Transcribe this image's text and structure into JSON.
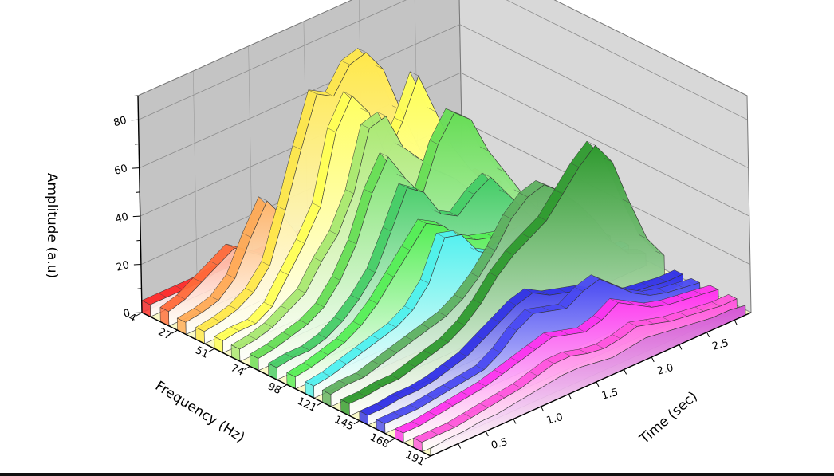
{
  "chart_data": {
    "type": "area",
    "title": "",
    "xlabel": "Frequency (Hz)",
    "ylabel": "Time (sec)",
    "zlabel": "Amplitude (a.u)",
    "x_ticks": [
      "4",
      "27",
      "51",
      "74",
      "98",
      "121",
      "145",
      "168",
      "191"
    ],
    "y_ticks": [
      "0.5",
      "1.0",
      "1.5",
      "2.0",
      "2.5"
    ],
    "z_ticks": [
      "0",
      "20",
      "40",
      "60",
      "80"
    ],
    "zlim": [
      0,
      90
    ],
    "time_range": [
      0,
      2.9
    ],
    "time_points": [
      0.0,
      0.15,
      0.3,
      0.45,
      0.6,
      0.75,
      0.9,
      1.05,
      1.2,
      1.35,
      1.5,
      1.65,
      1.8,
      1.95,
      2.1,
      2.25,
      2.4,
      2.55,
      2.7,
      2.85
    ],
    "grid": true,
    "series": [
      {
        "name": "",
        "frequency": 4,
        "color": "#ff2a2a",
        "values": [
          5,
          5,
          5,
          5,
          6,
          6,
          6,
          5,
          5,
          5,
          5,
          5,
          5,
          5,
          5,
          5,
          5,
          5,
          5,
          5
        ]
      },
      {
        "name": "",
        "frequency": 16,
        "color": "#ff6a3a",
        "values": [
          6,
          8,
          12,
          16,
          20,
          15,
          10,
          8,
          6,
          5,
          5,
          5,
          5,
          5,
          5,
          5,
          5,
          5,
          5,
          5
        ]
      },
      {
        "name": "",
        "frequency": 27,
        "color": "#ffaa55",
        "values": [
          5,
          6,
          8,
          14,
          28,
          40,
          30,
          18,
          10,
          6,
          5,
          5,
          5,
          5,
          5,
          5,
          5,
          5,
          5,
          5
        ]
      },
      {
        "name": "",
        "frequency": 39,
        "color": "#ffe84a",
        "values": [
          5,
          6,
          8,
          12,
          20,
          40,
          62,
          82,
          78,
          88,
          90,
          80,
          60,
          42,
          26,
          14,
          8,
          6,
          5,
          5
        ]
      },
      {
        "name": "",
        "frequency": 51,
        "color": "#ffff55",
        "values": [
          5,
          6,
          6,
          10,
          20,
          30,
          42,
          70,
          82,
          72,
          50,
          62,
          78,
          60,
          42,
          30,
          20,
          12,
          8,
          5
        ]
      },
      {
        "name": "",
        "frequency": 62,
        "color": "#a8e870",
        "values": [
          5,
          6,
          8,
          12,
          16,
          26,
          34,
          48,
          72,
          74,
          58,
          50,
          42,
          36,
          28,
          20,
          12,
          8,
          6,
          5
        ]
      },
      {
        "name": "",
        "frequency": 74,
        "color": "#66dd55",
        "values": [
          5,
          6,
          8,
          10,
          14,
          22,
          34,
          52,
          64,
          52,
          42,
          60,
          70,
          64,
          48,
          36,
          24,
          14,
          8,
          5
        ]
      },
      {
        "name": "",
        "frequency": 86,
        "color": "#44cc66",
        "values": [
          5,
          6,
          6,
          8,
          12,
          18,
          26,
          40,
          55,
          50,
          38,
          34,
          40,
          44,
          34,
          24,
          14,
          8,
          6,
          5
        ]
      },
      {
        "name": "",
        "frequency": 98,
        "color": "#55ee55",
        "values": [
          5,
          6,
          8,
          10,
          14,
          20,
          28,
          36,
          44,
          40,
          32,
          28,
          26,
          24,
          22,
          18,
          12,
          8,
          6,
          5
        ]
      },
      {
        "name": "",
        "frequency": 110,
        "color": "#4ff0f0",
        "values": [
          5,
          6,
          8,
          10,
          12,
          14,
          18,
          26,
          42,
          40,
          30,
          26,
          28,
          30,
          22,
          14,
          8,
          6,
          5,
          5
        ]
      },
      {
        "name": "",
        "frequency": 121,
        "color": "#5fb060",
        "values": [
          5,
          6,
          6,
          8,
          10,
          12,
          14,
          16,
          20,
          26,
          34,
          44,
          50,
          52,
          46,
          38,
          28,
          16,
          8,
          5
        ]
      },
      {
        "name": "",
        "frequency": 133,
        "color": "#2e9a2e",
        "values": [
          5,
          5,
          6,
          6,
          8,
          10,
          12,
          16,
          22,
          30,
          36,
          40,
          44,
          52,
          60,
          66,
          56,
          36,
          18,
          8
        ]
      },
      {
        "name": "",
        "frequency": 145,
        "color": "#2f2fe8",
        "values": [
          4,
          4,
          5,
          5,
          6,
          8,
          10,
          14,
          18,
          22,
          24,
          20,
          18,
          16,
          12,
          8,
          6,
          5,
          4,
          4
        ]
      },
      {
        "name": "",
        "frequency": 156,
        "color": "#4a4af2",
        "values": [
          4,
          4,
          4,
          5,
          6,
          7,
          8,
          12,
          18,
          22,
          20,
          18,
          22,
          24,
          18,
          12,
          8,
          6,
          5,
          4
        ]
      },
      {
        "name": "",
        "frequency": 168,
        "color": "#ff33ee",
        "values": [
          4,
          4,
          5,
          6,
          7,
          8,
          10,
          12,
          14,
          16,
          14,
          12,
          14,
          18,
          14,
          10,
          8,
          7,
          6,
          5
        ]
      },
      {
        "name": "",
        "frequency": 180,
        "color": "#ff55dd",
        "values": [
          4,
          4,
          4,
          5,
          6,
          7,
          8,
          10,
          12,
          12,
          10,
          9,
          10,
          12,
          10,
          8,
          7,
          6,
          5,
          5
        ]
      },
      {
        "name": "",
        "frequency": 191,
        "color": "#d455d4",
        "values": [
          3,
          4,
          4,
          5,
          5,
          6,
          7,
          8,
          9,
          9,
          8,
          7,
          8,
          9,
          8,
          7,
          6,
          5,
          5,
          4
        ]
      }
    ]
  }
}
